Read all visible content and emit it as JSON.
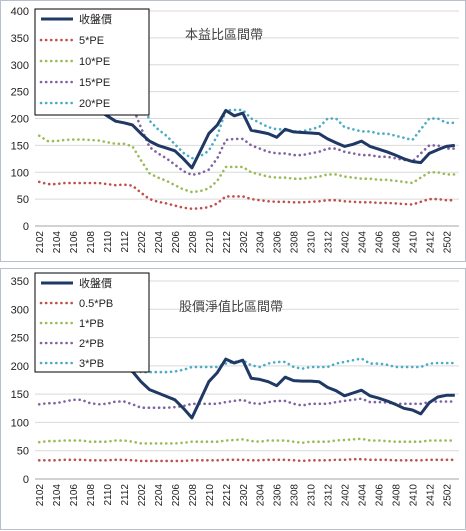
{
  "colors": {
    "close": "#1f3864",
    "s1": "#c0504d",
    "s2": "#9bbb59",
    "s3": "#8064a2",
    "s4": "#4bacc6"
  },
  "chart_data": [
    {
      "type": "line",
      "title": "本益比區間帶",
      "xlabel": "",
      "ylabel": "",
      "ylim": [
        0,
        400
      ],
      "yticks": [
        0,
        50,
        100,
        150,
        200,
        250,
        300,
        350,
        400
      ],
      "x": [
        "2102",
        "2103",
        "2104",
        "2105",
        "2106",
        "2107",
        "2108",
        "2109",
        "2110",
        "2111",
        "2112",
        "2201",
        "2202",
        "2203",
        "2204",
        "2205",
        "2206",
        "2207",
        "2208",
        "2209",
        "2210",
        "2211",
        "2212",
        "2301",
        "2302",
        "2303",
        "2304",
        "2305",
        "2306",
        "2307",
        "2308",
        "2309",
        "2310",
        "2311",
        "2312",
        "2401",
        "2402",
        "2403",
        "2404",
        "2405",
        "2406",
        "2407",
        "2408",
        "2409",
        "2410",
        "2411",
        "2412",
        "2501",
        "2502",
        "2503"
      ],
      "xtick_labels": [
        "2102",
        "2104",
        "2106",
        "2108",
        "2110",
        "2112",
        "2202",
        "2204",
        "2206",
        "2208",
        "2210",
        "2212",
        "2302",
        "2304",
        "2306",
        "2308",
        "2310",
        "2312",
        "2402",
        "2404",
        "2406",
        "2408",
        "2410",
        "2412",
        "2502"
      ],
      "grid": true,
      "legend_position": "top-left",
      "series": [
        {
          "name": "收盤價",
          "style": "solid",
          "color_key": "close",
          "values": [
            335,
            325,
            300,
            270,
            250,
            235,
            225,
            215,
            205,
            195,
            192,
            188,
            172,
            158,
            150,
            145,
            140,
            125,
            108,
            140,
            172,
            188,
            215,
            205,
            210,
            178,
            175,
            172,
            165,
            180,
            175,
            174,
            173,
            172,
            162,
            155,
            148,
            152,
            158,
            148,
            143,
            138,
            132,
            125,
            120,
            118,
            135,
            142,
            148,
            150
          ]
        },
        {
          "name": "5*PE",
          "style": "dotted",
          "color_key": "s1",
          "values": [
            82,
            78,
            78,
            80,
            80,
            80,
            80,
            80,
            78,
            76,
            77,
            75,
            62,
            50,
            45,
            42,
            38,
            34,
            32,
            33,
            35,
            42,
            55,
            55,
            55,
            50,
            48,
            46,
            45,
            45,
            44,
            44,
            45,
            46,
            48,
            48,
            46,
            45,
            44,
            44,
            43,
            43,
            42,
            41,
            40,
            45,
            50,
            50,
            48,
            48
          ]
        },
        {
          "name": "10*PE",
          "style": "dotted",
          "color_key": "s2",
          "values": [
            168,
            158,
            158,
            160,
            161,
            161,
            160,
            159,
            156,
            153,
            153,
            148,
            122,
            98,
            90,
            84,
            76,
            68,
            63,
            65,
            70,
            84,
            110,
            110,
            110,
            100,
            96,
            92,
            90,
            90,
            88,
            88,
            90,
            92,
            96,
            96,
            92,
            90,
            88,
            88,
            86,
            86,
            84,
            82,
            80,
            90,
            100,
            100,
            96,
            96
          ]
        },
        {
          "name": "15*PE",
          "style": "dotted",
          "color_key": "s3",
          "values": [
            248,
            238,
            238,
            240,
            242,
            242,
            240,
            238,
            234,
            230,
            230,
            222,
            183,
            147,
            135,
            126,
            114,
            102,
            95,
            98,
            105,
            126,
            160,
            162,
            162,
            150,
            144,
            138,
            135,
            135,
            132,
            132,
            135,
            138,
            144,
            144,
            138,
            135,
            132,
            132,
            129,
            129,
            126,
            123,
            120,
            135,
            150,
            150,
            144,
            144
          ]
        },
        {
          "name": "20*PE",
          "style": "dotted",
          "color_key": "s4",
          "values": [
            335,
            318,
            318,
            320,
            322,
            322,
            320,
            318,
            312,
            306,
            306,
            296,
            244,
            196,
            180,
            168,
            152,
            136,
            126,
            130,
            140,
            168,
            215,
            216,
            216,
            200,
            192,
            184,
            180,
            180,
            176,
            176,
            180,
            184,
            200,
            200,
            184,
            180,
            176,
            176,
            172,
            172,
            168,
            164,
            160,
            180,
            200,
            200,
            192,
            192
          ]
        }
      ]
    },
    {
      "type": "line",
      "title": "股價淨值比區間帶",
      "xlabel": "",
      "ylabel": "",
      "ylim": [
        0,
        350
      ],
      "yticks": [
        0,
        50,
        100,
        150,
        200,
        250,
        300,
        350
      ],
      "x": [
        "2102",
        "2103",
        "2104",
        "2105",
        "2106",
        "2107",
        "2108",
        "2109",
        "2110",
        "2111",
        "2112",
        "2201",
        "2202",
        "2203",
        "2204",
        "2205",
        "2206",
        "2207",
        "2208",
        "2209",
        "2210",
        "2211",
        "2212",
        "2301",
        "2302",
        "2303",
        "2304",
        "2305",
        "2306",
        "2307",
        "2308",
        "2309",
        "2310",
        "2311",
        "2312",
        "2401",
        "2402",
        "2403",
        "2404",
        "2405",
        "2406",
        "2407",
        "2408",
        "2409",
        "2410",
        "2411",
        "2412",
        "2501",
        "2502",
        "2503"
      ],
      "xtick_labels": [
        "2102",
        "2104",
        "2106",
        "2108",
        "2110",
        "2112",
        "2202",
        "2204",
        "2206",
        "2208",
        "2210",
        "2212",
        "2302",
        "2304",
        "2306",
        "2308",
        "2310",
        "2312",
        "2402",
        "2404",
        "2406",
        "2408",
        "2410",
        "2412",
        "2502"
      ],
      "grid": true,
      "legend_position": "top-left",
      "series": [
        {
          "name": "收盤價",
          "style": "solid",
          "color_key": "close",
          "values": [
            300,
            290,
            270,
            250,
            235,
            225,
            218,
            210,
            200,
            192,
            194,
            190,
            172,
            158,
            152,
            146,
            140,
            125,
            108,
            140,
            172,
            188,
            212,
            205,
            210,
            178,
            176,
            172,
            165,
            180,
            174,
            173,
            173,
            172,
            162,
            156,
            147,
            152,
            157,
            147,
            143,
            138,
            132,
            125,
            122,
            115,
            135,
            145,
            148,
            148
          ]
        },
        {
          "name": "0.5*PB",
          "style": "dotted",
          "color_key": "s1",
          "values": [
            33,
            33,
            33,
            34,
            34,
            34,
            33,
            33,
            33,
            34,
            34,
            33,
            32,
            32,
            32,
            32,
            32,
            32,
            33,
            33,
            33,
            33,
            34,
            34,
            34,
            33,
            33,
            34,
            34,
            34,
            33,
            32,
            33,
            33,
            33,
            34,
            34,
            35,
            35,
            34,
            34,
            34,
            33,
            33,
            33,
            33,
            34,
            34,
            34,
            34
          ]
        },
        {
          "name": "1*PB",
          "style": "dotted",
          "color_key": "s2",
          "values": [
            65,
            67,
            67,
            68,
            68,
            68,
            66,
            66,
            66,
            68,
            68,
            66,
            63,
            63,
            63,
            63,
            63,
            64,
            66,
            66,
            66,
            66,
            68,
            69,
            70,
            67,
            66,
            68,
            68,
            68,
            66,
            64,
            66,
            66,
            66,
            68,
            69,
            70,
            71,
            68,
            68,
            67,
            66,
            66,
            66,
            66,
            68,
            68,
            68,
            68
          ]
        },
        {
          "name": "2*PB",
          "style": "dotted",
          "color_key": "s3",
          "values": [
            132,
            134,
            134,
            137,
            140,
            140,
            134,
            132,
            133,
            137,
            137,
            132,
            126,
            126,
            126,
            126,
            127,
            129,
            133,
            133,
            133,
            133,
            136,
            138,
            140,
            134,
            133,
            136,
            138,
            138,
            133,
            130,
            133,
            133,
            133,
            136,
            138,
            140,
            142,
            136,
            136,
            135,
            133,
            133,
            133,
            133,
            136,
            137,
            137,
            137
          ]
        },
        {
          "name": "3*PB",
          "style": "dotted",
          "color_key": "s4",
          "values": [
            196,
            200,
            200,
            205,
            210,
            210,
            200,
            198,
            200,
            205,
            205,
            198,
            189,
            189,
            189,
            189,
            190,
            193,
            198,
            198,
            198,
            198,
            204,
            207,
            210,
            201,
            198,
            204,
            207,
            207,
            198,
            195,
            198,
            198,
            198,
            204,
            207,
            210,
            213,
            204,
            204,
            202,
            198,
            198,
            198,
            198,
            204,
            205,
            205,
            205
          ]
        }
      ]
    }
  ]
}
